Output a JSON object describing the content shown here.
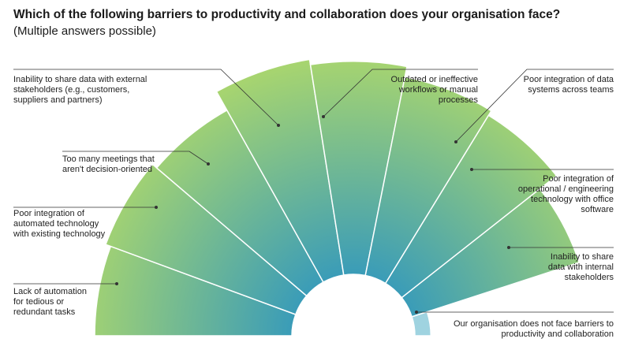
{
  "title": "Which of the following barriers to productivity and collaboration does your organisation face?",
  "subtitle": "(Multiple answers possible)",
  "colors": {
    "outer": "#a8d56f",
    "inner": "#3a9cb8",
    "none_bar": "#9fd3e0",
    "line": "#333333"
  },
  "chart_data": {
    "type": "radial-bar",
    "title": "Which of the following barriers to productivity and collaboration does your organisation face?",
    "subtitle": "(Multiple answers possible)",
    "categories": [
      "Lack of automation for tedious or redundant tasks",
      "Poor integration of automated technology with existing technology",
      "Too many meetings that aren't decision-oriented",
      "Inability to share data with external stakeholders (e.g., customers, suppliers and partners)",
      "Outdated or ineffective workflows or manual processes",
      "Poor integration of data systems across teams",
      "Poor integration of operational / engineering technology with office software",
      "Inability to share data with internal stakeholders",
      "Our organisation does not face barriers to productivity and collaboration"
    ],
    "series": [
      {
        "values": [
          37,
          38,
          37,
          41,
          40,
          38,
          37,
          33,
          3
        ]
      }
    ],
    "labels": [
      [
        "Lack of automation",
        "for tedious or",
        "redundant tasks"
      ],
      [
        "Poor integration of",
        "automated technology",
        "with existing technology"
      ],
      [
        "Too many meetings that",
        "aren't decision-oriented"
      ],
      [
        "Inability to share data with external",
        "stakeholders (e.g., customers,",
        "suppliers and partners)"
      ],
      [
        "Outdated or ineffective",
        "workflows or manual",
        "processes"
      ],
      [
        "Poor integration of data",
        "systems across teams"
      ],
      [
        "Poor integration of",
        "operational / engineering",
        "technology with office",
        "software"
      ],
      [
        "Inability to share",
        "data with internal",
        "stakeholders"
      ],
      [
        "Our organisation does not face barriers to",
        "productivity and collaboration"
      ]
    ]
  }
}
